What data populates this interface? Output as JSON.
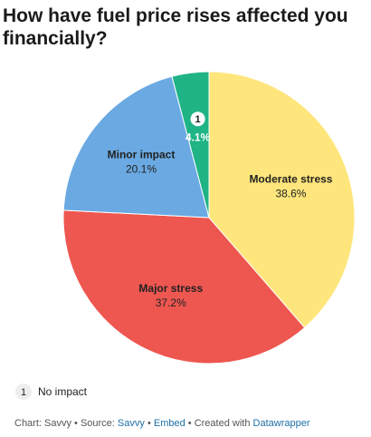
{
  "chart_data": {
    "type": "pie",
    "title": "How have fuel price rises affected you financially?",
    "categories": [
      "Moderate stress",
      "Major stress",
      "Minor impact",
      "No impact"
    ],
    "values": [
      38.6,
      37.2,
      20.1,
      4.1
    ],
    "value_labels": [
      "38.6%",
      "37.2%",
      "20.1%",
      "4.1%"
    ],
    "colors": [
      "#fee67c",
      "#ee5650",
      "#6aa9e2",
      "#1fb386"
    ],
    "key": "1",
    "footer": {
      "chart": "Chart: Savvy",
      "source": "Source:",
      "source_link": "Savvy",
      "embed": "Embed",
      "created": "Created with",
      "tool": "Datawrapper"
    }
  }
}
